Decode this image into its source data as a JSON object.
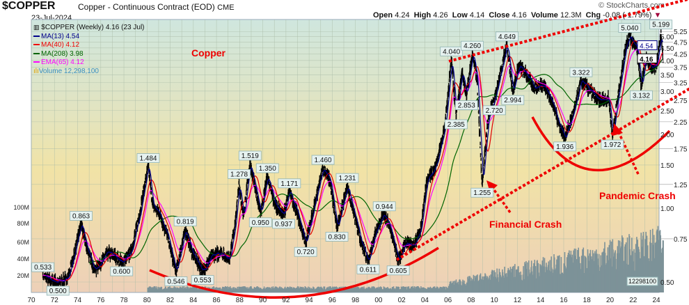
{
  "header": {
    "symbol": "$COPPER",
    "description": "Copper - Continuous Contract (EOD)",
    "exchange": "CME",
    "date": "23-Jul-2024",
    "watermark": "© StockCharts.com",
    "open_label": "Open",
    "open": "4.24",
    "high_label": "High",
    "high": "4.26",
    "low_label": "Low",
    "low": "4.14",
    "close_label": "Close",
    "close": "4.16",
    "volume_label": "Volume",
    "volume": "12.3M",
    "chg_label": "Chg",
    "chg": "-0.08 (-1.79%)"
  },
  "legend": {
    "main": "$COPPER (Weekly) 4.16 (23 Jul)",
    "items": [
      {
        "label": "MA(13) 4.54",
        "color": "#00008b"
      },
      {
        "label": "MA(40) 4.12",
        "color": "#ee0000"
      },
      {
        "label": "MA(208) 3.98",
        "color": "#006400"
      },
      {
        "label": "EMA(65) 4.12",
        "color": "#ff00ff"
      },
      {
        "label": "Volume 12,298,100",
        "color": "#3a8fc0"
      }
    ]
  },
  "annotations": {
    "title": "Copper",
    "financial": "Financial Crash",
    "pandemic": "Pandemic Crash"
  },
  "chart_data": {
    "type": "line",
    "title": "$COPPER (Weekly)",
    "scale": "log",
    "ylim": [
      0.45,
      5.6
    ],
    "xlim": [
      1970,
      2024.7
    ],
    "x_tick_labels": [
      "70",
      "72",
      "74",
      "76",
      "78",
      "80",
      "82",
      "84",
      "86",
      "88",
      "90",
      "92",
      "94",
      "96",
      "98",
      "00",
      "02",
      "04",
      "06",
      "08",
      "10",
      "12",
      "14",
      "16",
      "18",
      "20",
      "22",
      "24"
    ],
    "y_tick_labels": [
      "5.25",
      "5.00",
      "4.75",
      "4.50",
      "4.25",
      "4.00",
      "3.75",
      "3.50",
      "3.25",
      "3.00",
      "2.75",
      "2.50",
      "2.25",
      "2.00",
      "1.75",
      "1.50",
      "1.25",
      "1.00",
      "0.75",
      "0.50"
    ],
    "volume_tick_labels": [
      "100M",
      "80M",
      "60M",
      "40M",
      "20M"
    ],
    "volume_last_label": "12298100",
    "last_values": {
      "ma13": "4.54",
      "close": "4.16",
      "ma40": "4.12",
      "ma208": "3.98"
    },
    "price_path": [
      [
        1971,
        0.533
      ],
      [
        1971.6,
        0.51
      ],
      [
        1972.3,
        0.5
      ],
      [
        1972.9,
        0.51
      ],
      [
        1973.2,
        0.53
      ],
      [
        1973.6,
        0.62
      ],
      [
        1974.3,
        0.863
      ],
      [
        1974.9,
        0.66
      ],
      [
        1975.5,
        0.56
      ],
      [
        1976.6,
        0.66
      ],
      [
        1977.2,
        0.64
      ],
      [
        1977.8,
        0.6
      ],
      [
        1978.6,
        0.66
      ],
      [
        1979.3,
        0.92
      ],
      [
        1980.1,
        1.484
      ],
      [
        1980.5,
        1.02
      ],
      [
        1981.1,
        0.95
      ],
      [
        1981.8,
        0.76
      ],
      [
        1982.5,
        0.546
      ],
      [
        1983.3,
        0.819
      ],
      [
        1983.9,
        0.66
      ],
      [
        1984.8,
        0.553
      ],
      [
        1985.6,
        0.64
      ],
      [
        1986.4,
        0.66
      ],
      [
        1987.1,
        0.62
      ],
      [
        1987.6,
        0.85
      ],
      [
        1987.95,
        1.278
      ],
      [
        1988.3,
        0.92
      ],
      [
        1988.9,
        1.519
      ],
      [
        1989.3,
        1.25
      ],
      [
        1989.8,
        0.95
      ],
      [
        1990.4,
        1.35
      ],
      [
        1991,
        1.05
      ],
      [
        1991.8,
        0.937
      ],
      [
        1992.3,
        1.171
      ],
      [
        1992.9,
        0.98
      ],
      [
        1993.7,
        0.72
      ],
      [
        1994.4,
        1.0
      ],
      [
        1995.2,
        1.46
      ],
      [
        1995.8,
        1.3
      ],
      [
        1996.4,
        0.83
      ],
      [
        1997.3,
        1.231
      ],
      [
        1997.9,
        0.95
      ],
      [
        1998.5,
        0.72
      ],
      [
        1999.1,
        0.611
      ],
      [
        1999.8,
        0.82
      ],
      [
        2000.5,
        0.944
      ],
      [
        2001,
        0.84
      ],
      [
        2001.7,
        0.605
      ],
      [
        2002.3,
        0.72
      ],
      [
        2003,
        0.7
      ],
      [
        2003.6,
        0.8
      ],
      [
        2004.2,
        1.3
      ],
      [
        2005,
        1.5
      ],
      [
        2005.7,
        2.1
      ],
      [
        2006.3,
        4.04
      ],
      [
        2006.7,
        2.385
      ],
      [
        2007.2,
        3.6
      ],
      [
        2007.6,
        2.853
      ],
      [
        2008.1,
        4.26
      ],
      [
        2008.5,
        3.4
      ],
      [
        2008.95,
        1.255
      ],
      [
        2009.5,
        2.4
      ],
      [
        2010,
        2.72
      ],
      [
        2010.4,
        3.4
      ],
      [
        2011.1,
        4.649
      ],
      [
        2011.6,
        2.994
      ],
      [
        2012.1,
        3.8
      ],
      [
        2012.8,
        3.5
      ],
      [
        2013.5,
        3.1
      ],
      [
        2014.2,
        3.2
      ],
      [
        2014.9,
        2.8
      ],
      [
        2015.6,
        2.2
      ],
      [
        2016.1,
        1.936
      ],
      [
        2016.9,
        2.5
      ],
      [
        2017.5,
        3.322
      ],
      [
        2018.3,
        3.0
      ],
      [
        2019,
        2.75
      ],
      [
        2019.9,
        2.8
      ],
      [
        2020.2,
        1.972
      ],
      [
        2020.8,
        3.1
      ],
      [
        2021.4,
        4.7
      ],
      [
        2021.7,
        5.04
      ],
      [
        2022.3,
        4.5
      ],
      [
        2022.7,
        3.132
      ],
      [
        2023.1,
        4.1
      ],
      [
        2023.6,
        3.7
      ],
      [
        2024.0,
        3.8
      ],
      [
        2024.4,
        5.199
      ],
      [
        2024.56,
        4.16
      ]
    ],
    "labeled_points": [
      {
        "year": 1971,
        "value": 0.533,
        "label": "0.533",
        "pos": "above"
      },
      {
        "year": 1972.3,
        "value": 0.5,
        "label": "0.500",
        "pos": "below"
      },
      {
        "year": 1974.3,
        "value": 0.863,
        "label": "0.863",
        "pos": "above"
      },
      {
        "year": 1977.8,
        "value": 0.6,
        "label": "0.600",
        "pos": "below"
      },
      {
        "year": 1980.1,
        "value": 1.484,
        "label": "1.484",
        "pos": "above"
      },
      {
        "year": 1983.3,
        "value": 0.819,
        "label": "0.819",
        "pos": "above"
      },
      {
        "year": 1982.5,
        "value": 0.546,
        "label": "0.546",
        "pos": "below"
      },
      {
        "year": 1984.8,
        "value": 0.553,
        "label": "0.553",
        "pos": "below"
      },
      {
        "year": 1987.95,
        "value": 1.278,
        "label": "1.278",
        "pos": "above"
      },
      {
        "year": 1988.9,
        "value": 1.519,
        "label": "1.519",
        "pos": "above"
      },
      {
        "year": 1990.4,
        "value": 1.35,
        "label": "1.350",
        "pos": "above"
      },
      {
        "year": 1989.8,
        "value": 0.95,
        "label": "0.950",
        "pos": "below"
      },
      {
        "year": 1992.3,
        "value": 1.171,
        "label": "1.171",
        "pos": "above"
      },
      {
        "year": 1991.8,
        "value": 0.937,
        "label": "0.937",
        "pos": "below"
      },
      {
        "year": 1993.7,
        "value": 0.72,
        "label": "0.720",
        "pos": "below"
      },
      {
        "year": 1995.2,
        "value": 1.46,
        "label": "1.460",
        "pos": "above"
      },
      {
        "year": 1997.3,
        "value": 1.231,
        "label": "1.231",
        "pos": "above"
      },
      {
        "year": 1996.4,
        "value": 0.83,
        "label": "0.830",
        "pos": "below"
      },
      {
        "year": 1999.1,
        "value": 0.611,
        "label": "0.611",
        "pos": "below"
      },
      {
        "year": 2000.5,
        "value": 0.944,
        "label": "0.944",
        "pos": "above"
      },
      {
        "year": 2001.7,
        "value": 0.605,
        "label": "0.605",
        "pos": "below"
      },
      {
        "year": 2006.3,
        "value": 4.04,
        "label": "4.040",
        "pos": "above"
      },
      {
        "year": 2006.7,
        "value": 2.385,
        "label": "2.385",
        "pos": "below"
      },
      {
        "year": 2008.1,
        "value": 4.26,
        "label": "4.260",
        "pos": "above"
      },
      {
        "year": 2007.6,
        "value": 2.853,
        "label": "2.853",
        "pos": "below"
      },
      {
        "year": 2008.95,
        "value": 1.255,
        "label": "1.255",
        "pos": "below"
      },
      {
        "year": 2010,
        "value": 2.72,
        "label": "2.720",
        "pos": "below"
      },
      {
        "year": 2011.1,
        "value": 4.649,
        "label": "4.649",
        "pos": "above"
      },
      {
        "year": 2011.6,
        "value": 2.994,
        "label": "2.994",
        "pos": "below"
      },
      {
        "year": 2016.1,
        "value": 1.936,
        "label": "1.936",
        "pos": "below"
      },
      {
        "year": 2017.5,
        "value": 3.322,
        "label": "3.322",
        "pos": "above"
      },
      {
        "year": 2020.2,
        "value": 1.972,
        "label": "1.972",
        "pos": "below"
      },
      {
        "year": 2021.7,
        "value": 5.04,
        "label": "5.040",
        "pos": "above"
      },
      {
        "year": 2022.7,
        "value": 3.132,
        "label": "3.132",
        "pos": "below"
      },
      {
        "year": 2024.4,
        "value": 5.199,
        "label": "5.199",
        "pos": "above"
      }
    ]
  }
}
